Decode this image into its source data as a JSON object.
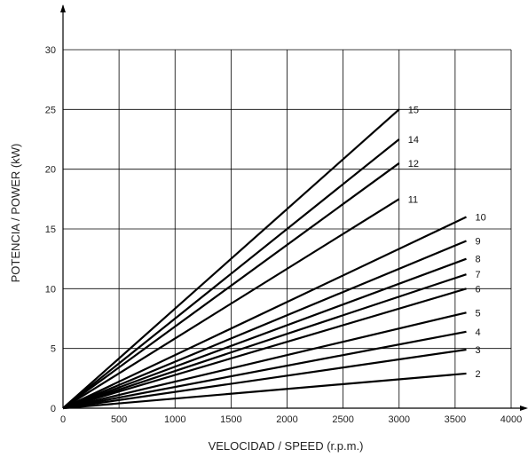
{
  "chart_data": {
    "type": "line",
    "title": "",
    "xlabel": "VELOCIDAD / SPEED (r.p.m.)",
    "ylabel": "POTENCIA / POWER (kW)",
    "xlim": [
      0,
      4000
    ],
    "ylim": [
      0,
      30
    ],
    "x_ticks": [
      0,
      500,
      1000,
      1500,
      2000,
      2500,
      3000,
      3500,
      4000
    ],
    "y_ticks": [
      0,
      5,
      10,
      15,
      20,
      25,
      30
    ],
    "grid": true,
    "series": [
      {
        "name": "15",
        "x": [
          0,
          3000
        ],
        "y": [
          0,
          25
        ]
      },
      {
        "name": "14",
        "x": [
          0,
          3000
        ],
        "y": [
          0,
          22.5
        ]
      },
      {
        "name": "12",
        "x": [
          0,
          3000
        ],
        "y": [
          0,
          20.5
        ]
      },
      {
        "name": "11",
        "x": [
          0,
          3000
        ],
        "y": [
          0,
          17.5
        ]
      },
      {
        "name": "10",
        "x": [
          0,
          3600
        ],
        "y": [
          0,
          16
        ]
      },
      {
        "name": "9",
        "x": [
          0,
          3600
        ],
        "y": [
          0,
          14
        ]
      },
      {
        "name": "8",
        "x": [
          0,
          3600
        ],
        "y": [
          0,
          12.5
        ]
      },
      {
        "name": "7",
        "x": [
          0,
          3600
        ],
        "y": [
          0,
          11.2
        ]
      },
      {
        "name": "6",
        "x": [
          0,
          3600
        ],
        "y": [
          0,
          10
        ]
      },
      {
        "name": "5",
        "x": [
          0,
          3600
        ],
        "y": [
          0,
          8
        ]
      },
      {
        "name": "4",
        "x": [
          0,
          3600
        ],
        "y": [
          0,
          6.4
        ]
      },
      {
        "name": "3",
        "x": [
          0,
          3600
        ],
        "y": [
          0,
          4.9
        ]
      },
      {
        "name": "2",
        "x": [
          0,
          3600
        ],
        "y": [
          0,
          2.9
        ]
      }
    ]
  }
}
